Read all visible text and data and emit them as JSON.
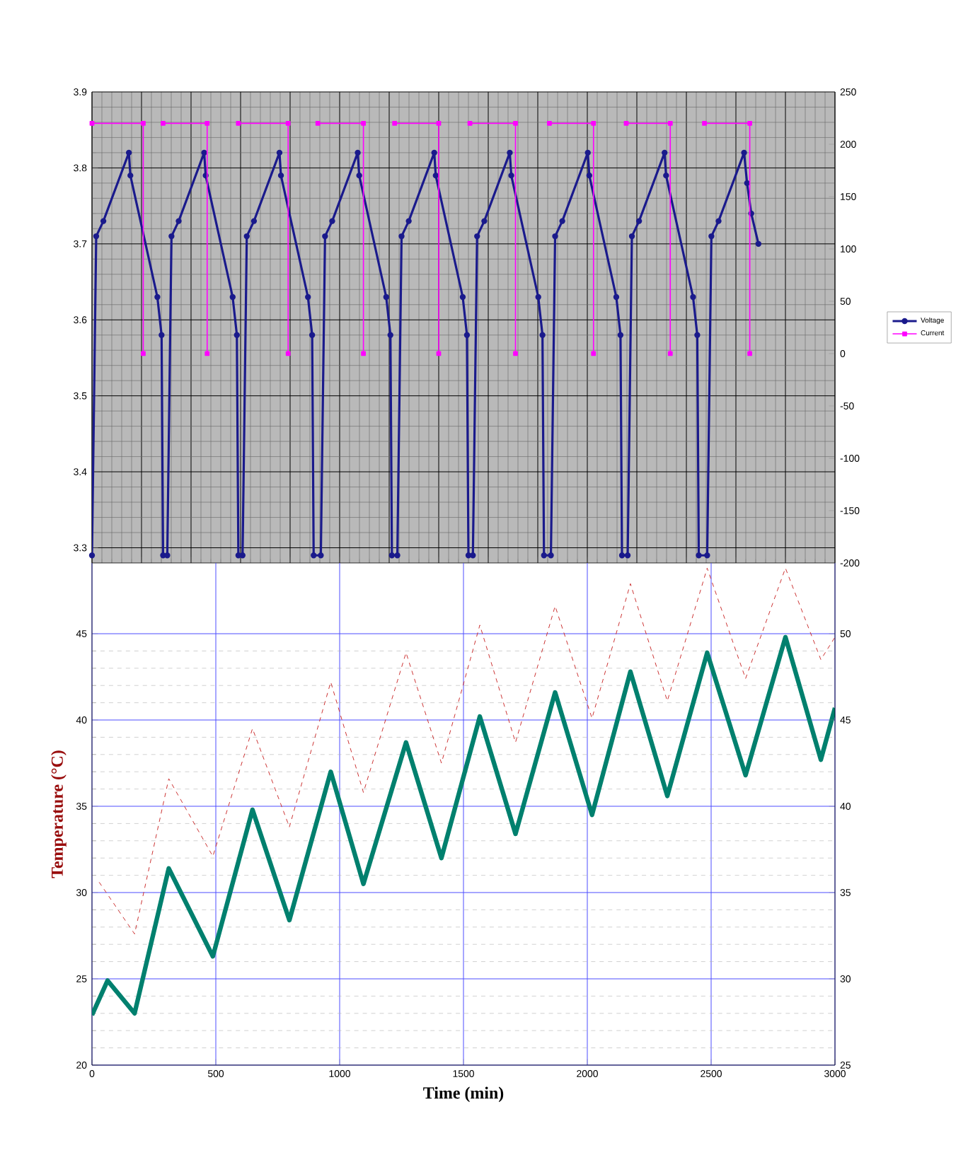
{
  "chart_data": [
    {
      "type": "line",
      "xlim": [
        0,
        3000
      ],
      "ylim": [
        3.28,
        3.9
      ],
      "yticks": [
        3.3,
        3.4,
        3.5,
        3.6,
        3.7,
        3.8,
        3.9
      ],
      "y2lim": [
        -200,
        250
      ],
      "y2ticks": [
        -200,
        -150,
        -100,
        -50,
        0,
        50,
        100,
        150,
        200,
        250
      ],
      "tick_labels": "y",
      "grid": true,
      "legend": "right",
      "series": [
        {
          "name": "Voltage",
          "color": "#1a1a8c",
          "axis": "y",
          "marker": "circle",
          "line_style": "solid",
          "x": [
            0,
            17,
            46,
            149,
            155,
            264,
            281,
            287,
            304,
            321,
            350,
            453,
            459,
            568,
            585,
            591,
            608,
            625,
            654,
            757,
            763,
            872,
            889,
            895,
            924,
            941,
            970,
            1073,
            1079,
            1188,
            1205,
            1211,
            1233,
            1250,
            1279,
            1382,
            1388,
            1497,
            1514,
            1520,
            1538,
            1555,
            1584,
            1687,
            1693,
            1802,
            1819,
            1825,
            1853,
            1870,
            1899,
            2002,
            2008,
            2117,
            2134,
            2140,
            2163,
            2180,
            2209,
            2312,
            2318,
            2427,
            2444,
            2450,
            2484,
            2501,
            2530,
            2633,
            2645,
            2662,
            2691
          ],
          "values": [
            3.29,
            3.71,
            3.73,
            3.82,
            3.79,
            3.63,
            3.58,
            3.29,
            3.29,
            3.71,
            3.73,
            3.82,
            3.79,
            3.63,
            3.58,
            3.29,
            3.29,
            3.71,
            3.73,
            3.82,
            3.79,
            3.63,
            3.58,
            3.29,
            3.29,
            3.71,
            3.73,
            3.82,
            3.79,
            3.63,
            3.58,
            3.29,
            3.29,
            3.71,
            3.73,
            3.82,
            3.79,
            3.63,
            3.58,
            3.29,
            3.29,
            3.71,
            3.73,
            3.82,
            3.79,
            3.63,
            3.58,
            3.29,
            3.29,
            3.71,
            3.73,
            3.82,
            3.79,
            3.63,
            3.58,
            3.29,
            3.29,
            3.71,
            3.73,
            3.82,
            3.79,
            3.63,
            3.58,
            3.29,
            3.29,
            3.71,
            3.73,
            3.82,
            3.78,
            3.74,
            3.7
          ]
        },
        {
          "name": "Current",
          "color": "#ff00ff",
          "axis": "y2",
          "marker": "square",
          "line_style": "solid",
          "x": [
            0,
            207,
            207,
            250,
            287,
            465,
            465,
            530,
            591,
            792,
            792,
            850,
            912,
            1096,
            1096,
            1150,
            1222,
            1400,
            1400,
            1460,
            1526,
            1710,
            1710,
            1780,
            1847,
            2025,
            2025,
            2090,
            2157,
            2335,
            2335,
            2400,
            2473,
            2656,
            2656
          ],
          "values": [
            220,
            220,
            0,
            null,
            220,
            220,
            0,
            null,
            220,
            220,
            0,
            null,
            220,
            220,
            0,
            null,
            220,
            220,
            0,
            null,
            220,
            220,
            0,
            null,
            220,
            220,
            0,
            null,
            220,
            220,
            0,
            null,
            220,
            220,
            0
          ]
        }
      ]
    },
    {
      "type": "line",
      "xlabel": "Time (min)",
      "ylabel": "Temperature (°C)",
      "xlim": [
        0,
        3000
      ],
      "xticks": [
        0,
        500,
        1000,
        1500,
        2000,
        2500,
        3000
      ],
      "ylim": [
        20,
        49.1
      ],
      "yticks": [
        20,
        25,
        30,
        35,
        40,
        45
      ],
      "y2lim": [
        25,
        54.1
      ],
      "y2ticks": [
        25,
        30,
        35,
        40,
        45,
        50
      ],
      "grid": true,
      "series": [
        {
          "color": "#cc3333",
          "axis": "y",
          "marker": "none",
          "line_style": "dashed",
          "x": [
            29,
            172,
            310,
            488,
            648,
            797,
            964,
            1096,
            1268,
            1411,
            1566,
            1710,
            1870,
            2019,
            2174,
            2323,
            2484,
            2639,
            2800,
            2943,
            3000
          ],
          "values": [
            30.6,
            27.6,
            36.6,
            32.1,
            39.5,
            33.8,
            42.2,
            35.8,
            43.9,
            37.5,
            45.5,
            38.7,
            46.6,
            40.1,
            47.9,
            41.1,
            48.8,
            42.4,
            48.8,
            43.5,
            44.8
          ]
        },
        {
          "color": "#00806e",
          "axis": "y",
          "marker": "none",
          "line_style": "solid",
          "x": [
            0,
            63,
            172,
            310,
            488,
            648,
            797,
            964,
            1096,
            1268,
            1411,
            1566,
            1710,
            1870,
            2019,
            2174,
            2323,
            2484,
            2639,
            2800,
            2943,
            3000
          ],
          "values": [
            22.9,
            24.9,
            23.0,
            31.4,
            26.3,
            34.8,
            28.4,
            37.0,
            30.5,
            38.7,
            32.0,
            40.2,
            33.4,
            41.6,
            34.5,
            42.8,
            35.6,
            43.9,
            36.8,
            44.8,
            37.7,
            40.7
          ]
        }
      ]
    }
  ]
}
